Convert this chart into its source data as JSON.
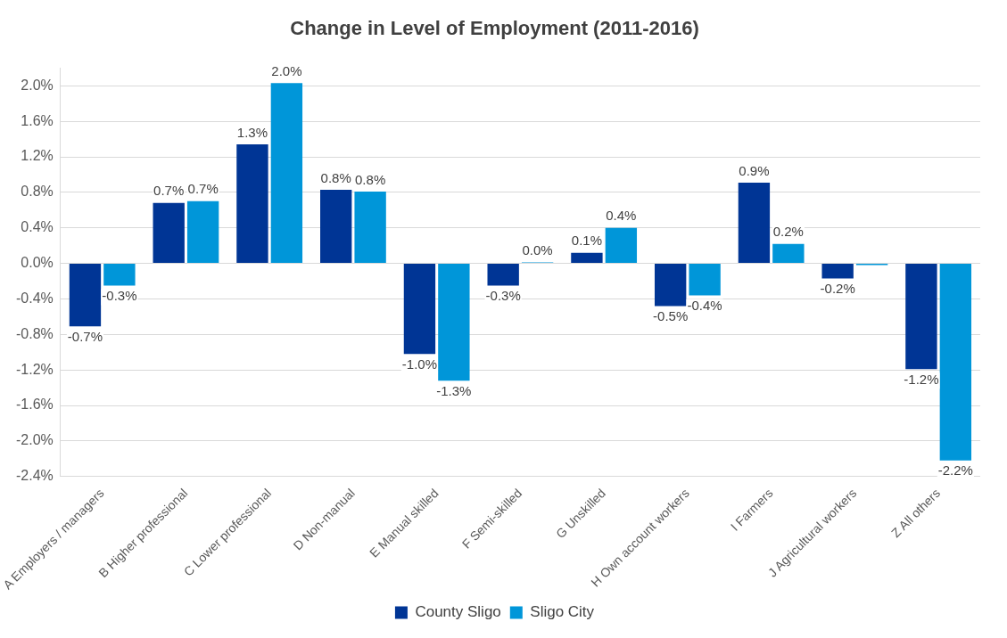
{
  "chart_data": {
    "type": "bar",
    "title": "Change in Level of Employment (2011-2016)",
    "categories": [
      "A Employers / managers",
      "B Higher professional",
      "C Lower professional",
      "D Non-manual",
      "E Manual skilled",
      "F Semi-skilled",
      "G Unskilled",
      "H Own account workers",
      "I Farmers",
      "J Agricultural workers",
      "Z All others"
    ],
    "series": [
      {
        "name": "County Sligo",
        "color": "#003595",
        "values": [
          -0.71,
          0.68,
          1.34,
          0.83,
          -1.02,
          -0.25,
          0.12,
          -0.48,
          0.91,
          -0.17,
          -1.19
        ],
        "value_labels": [
          "-0.7%",
          "0.7%",
          "1.3%",
          "0.8%",
          "-1.0%",
          "-0.3%",
          "0.1%",
          "-0.5%",
          "0.9%",
          "-0.2%",
          "-1.2%"
        ]
      },
      {
        "name": "Sligo City",
        "color": "#0096d9",
        "values": [
          -0.25,
          0.7,
          2.03,
          0.81,
          -1.32,
          0.01,
          0.4,
          -0.36,
          0.22,
          -0.02,
          -2.22
        ],
        "value_labels": [
          "-0.3%",
          "0.7%",
          "2.0%",
          "0.8%",
          "-1.3%",
          "0.0%",
          "0.4%",
          "-0.4%",
          "0.2%",
          null,
          "-2.2%"
        ]
      }
    ],
    "ylim": [
      -2.4,
      2.2
    ],
    "yticks": [
      {
        "value": -2.4,
        "label": "-2.4%"
      },
      {
        "value": -2,
        "label": "-2.0%"
      },
      {
        "value": -1.6,
        "label": "-1.6%"
      },
      {
        "value": -1.2,
        "label": "-1.2%"
      },
      {
        "value": -0.8,
        "label": "-0.8%"
      },
      {
        "value": -0.4,
        "label": "-0.4%"
      },
      {
        "value": 0,
        "label": "0.0%"
      },
      {
        "value": 0.4,
        "label": "0.4%"
      },
      {
        "value": 0.8,
        "label": "0.8%"
      },
      {
        "value": 1.2,
        "label": "1.2%"
      },
      {
        "value": 1.6,
        "label": "1.6%"
      },
      {
        "value": 2,
        "label": "2.0%"
      }
    ],
    "grid": "y",
    "legend": "bottom"
  }
}
